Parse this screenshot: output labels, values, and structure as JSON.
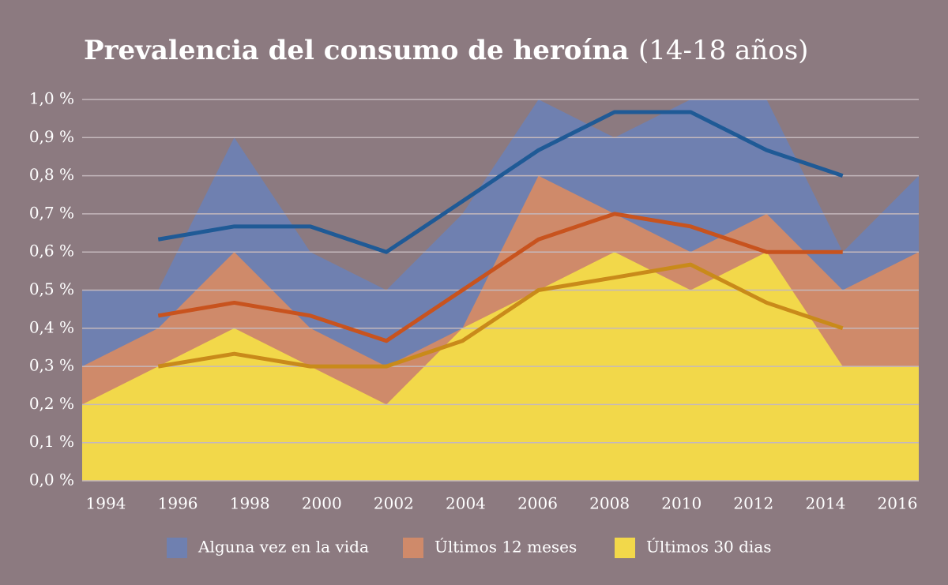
{
  "chart_data": {
    "type": "area-line",
    "title": "Prevalencia del consumo de heroína",
    "subtitle": "(14-18 años)",
    "categories": [
      "1994",
      "1996",
      "1998",
      "2000",
      "2002",
      "2004",
      "2006",
      "2008",
      "2010",
      "2012",
      "2014",
      "2016"
    ],
    "series": [
      {
        "name": "Alguna vez en la vida",
        "color": "#6f80b0",
        "values": [
          0.5,
          0.5,
          0.9,
          0.6,
          0.5,
          0.7,
          1.0,
          0.9,
          1.0,
          1.0,
          0.6,
          0.8
        ]
      },
      {
        "name": "Últimos 12 meses",
        "color": "#cf8a6a",
        "values": [
          0.3,
          0.4,
          0.6,
          0.4,
          0.3,
          0.4,
          0.8,
          0.7,
          0.6,
          0.7,
          0.5,
          0.6
        ]
      },
      {
        "name": "Últimos 30 dias",
        "color": "#f2d84a",
        "values": [
          0.2,
          0.3,
          0.4,
          0.3,
          0.2,
          0.4,
          0.5,
          0.6,
          0.5,
          0.6,
          0.3,
          0.3
        ]
      }
    ],
    "trend_lines": [
      {
        "color": "#1f5a96",
        "values": [
          null,
          0.633,
          0.667,
          0.667,
          0.6,
          0.733,
          0.867,
          0.967,
          0.967,
          0.867,
          0.8,
          null
        ]
      },
      {
        "color": "#c8531e",
        "values": [
          null,
          0.433,
          0.467,
          0.433,
          0.367,
          0.5,
          0.633,
          0.7,
          0.667,
          0.6,
          0.6,
          null
        ]
      },
      {
        "color": "#c98a1a",
        "values": [
          null,
          0.3,
          0.333,
          0.3,
          0.3,
          0.367,
          0.5,
          0.533,
          0.567,
          0.467,
          0.4,
          null
        ]
      }
    ],
    "ylim": [
      0,
      1.0
    ],
    "yticks": [
      {
        "value": 0,
        "label": "0,0 %"
      },
      {
        "value": 0.1,
        "label": "0,1 %"
      },
      {
        "value": 0.2,
        "label": "0,2 %"
      },
      {
        "value": 0.3,
        "label": "0,3 %"
      },
      {
        "value": 0.4,
        "label": "0,4 %"
      },
      {
        "value": 0.5,
        "label": "0,5 %"
      },
      {
        "value": 0.6,
        "label": "0,6 %"
      },
      {
        "value": 0.7,
        "label": "0,7 %"
      },
      {
        "value": 0.8,
        "label": "0,8 %"
      },
      {
        "value": 0.9,
        "label": "0,9 %"
      },
      {
        "value": 1.0,
        "label": "1,0 %"
      }
    ],
    "grid": true
  }
}
